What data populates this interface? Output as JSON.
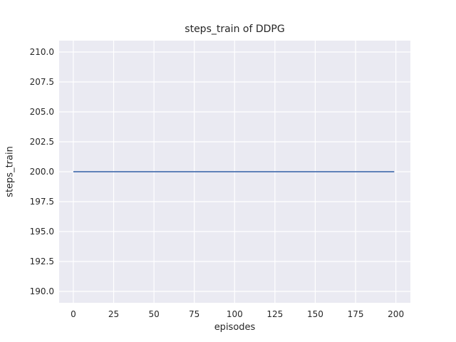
{
  "figure": {
    "background": "#ffffff",
    "text_color": "#262626"
  },
  "chart_data": {
    "type": "line",
    "title": "steps_train of DDPG",
    "xlabel": "episodes",
    "ylabel": "steps_train",
    "xlim": [
      -8.8,
      209.0
    ],
    "ylim": [
      189.05,
      210.95
    ],
    "x_ticks": [
      {
        "v": 0,
        "label": "0"
      },
      {
        "v": 25,
        "label": "25"
      },
      {
        "v": 50,
        "label": "50"
      },
      {
        "v": 75,
        "label": "75"
      },
      {
        "v": 100,
        "label": "100"
      },
      {
        "v": 125,
        "label": "125"
      },
      {
        "v": 150,
        "label": "150"
      },
      {
        "v": 175,
        "label": "175"
      },
      {
        "v": 200,
        "label": "200"
      }
    ],
    "y_ticks": [
      {
        "v": 190.0,
        "label": "190.0"
      },
      {
        "v": 192.5,
        "label": "192.5"
      },
      {
        "v": 195.0,
        "label": "195.0"
      },
      {
        "v": 197.5,
        "label": "197.5"
      },
      {
        "v": 200.0,
        "label": "200.0"
      },
      {
        "v": 202.5,
        "label": "202.5"
      },
      {
        "v": 205.0,
        "label": "205.0"
      },
      {
        "v": 207.5,
        "label": "207.5"
      },
      {
        "v": 210.0,
        "label": "210.0"
      }
    ],
    "grid": true,
    "legend": "none",
    "plot_background": "#eaeaf2",
    "grid_color": "#ffffff",
    "series": [
      {
        "name": "steps_train",
        "color": "#4c72b0",
        "x": [
          0,
          199
        ],
        "y": [
          200,
          200
        ]
      }
    ]
  }
}
